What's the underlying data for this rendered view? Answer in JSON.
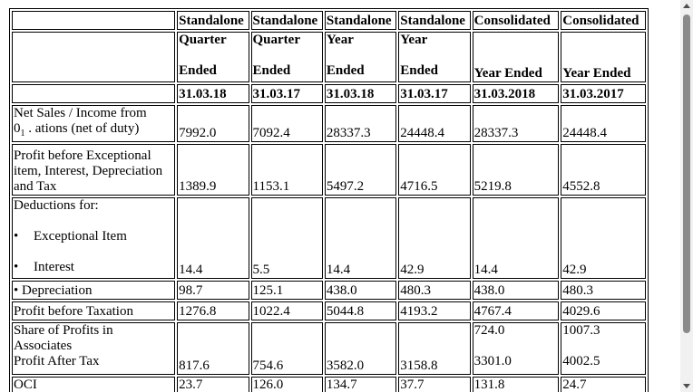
{
  "headers": {
    "row1": [
      "Standalone",
      "Standalone",
      "Standalone",
      "Standalone",
      "Consolidated",
      "Consolidated"
    ],
    "row2": [
      "Quarter",
      "Quarter",
      "Year",
      "Year",
      "",
      ""
    ],
    "row3": [
      "Ended",
      "Ended",
      "Ended",
      "Ended",
      "Year Ended",
      "Year Ended"
    ],
    "row4": [
      "31.03.18",
      "31.03.17",
      "31.03.18",
      "31.03.17",
      "31.03.2018",
      "31.03.2017"
    ]
  },
  "rows": {
    "net_sales": {
      "label_part1": "Net Sales / Income from",
      "label_digit": "0",
      "label_sub": "1",
      "label_part2": " . ations (net of duty)",
      "values": [
        "7992.0",
        "7092.4",
        "28337.3",
        "24448.4",
        "28337.3",
        "24448.4"
      ]
    },
    "profit_before_exceptional": {
      "label": "Profit before Exceptional item, Interest, Depreciation and Tax",
      "values": [
        "1389.9",
        "1153.1",
        "5497.2",
        "4716.5",
        "5219.8",
        "4552.8"
      ]
    },
    "deductions": {
      "label": "Deductions for:",
      "exceptional_item": "Exceptional Item",
      "interest": "Interest",
      "interest_values": [
        "14.4",
        "5.5",
        "14.4",
        "42.9",
        "14.4",
        "42.9"
      ]
    },
    "depreciation": {
      "label": "Depreciation",
      "values": [
        "98.7",
        "125.1",
        "438.0",
        "480.3",
        "438.0",
        "480.3"
      ]
    },
    "profit_before_taxation": {
      "label": "Profit before Taxation",
      "values": [
        "1276.8",
        "1022.4",
        "5044.8",
        "4193.2",
        "4767.4",
        "4029.6"
      ]
    },
    "share_of_profits": {
      "label": "Share of Profits in Associates",
      "values": [
        "",
        "",
        "",
        "",
        "724.0",
        "1007.3"
      ]
    },
    "profit_after_tax": {
      "label": "Profit After Tax",
      "values": [
        "817.6",
        "754.6",
        "3582.0",
        "3158.8",
        "3301.0",
        "4002.5"
      ]
    },
    "oci": {
      "label": "OCI",
      "values": [
        "23.7",
        "126.0",
        "134.7",
        "37.7",
        "131.8",
        "24.7"
      ]
    }
  },
  "bullet_glyph": "•"
}
